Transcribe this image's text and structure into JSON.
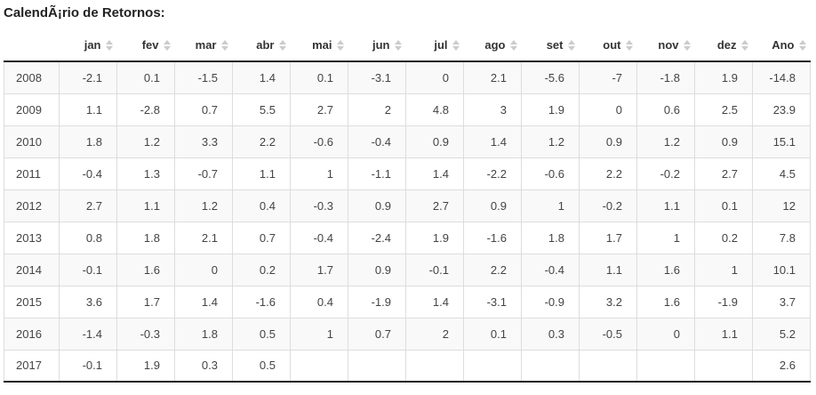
{
  "title": "CalendÃ¡rio de Retornos:",
  "table": {
    "columns": [
      {
        "label": "",
        "sortable": false
      },
      {
        "label": "jan",
        "sortable": true
      },
      {
        "label": "fev",
        "sortable": true
      },
      {
        "label": "mar",
        "sortable": true
      },
      {
        "label": "abr",
        "sortable": true
      },
      {
        "label": "mai",
        "sortable": true
      },
      {
        "label": "jun",
        "sortable": true
      },
      {
        "label": "jul",
        "sortable": true
      },
      {
        "label": "ago",
        "sortable": true
      },
      {
        "label": "set",
        "sortable": true
      },
      {
        "label": "out",
        "sortable": true
      },
      {
        "label": "nov",
        "sortable": true
      },
      {
        "label": "dez",
        "sortable": true
      },
      {
        "label": "Ano",
        "sortable": true
      }
    ],
    "rows": [
      {
        "year": "2008",
        "values": [
          "-2.1",
          "0.1",
          "-1.5",
          "1.4",
          "0.1",
          "-3.1",
          "0",
          "2.1",
          "-5.6",
          "-7",
          "-1.8",
          "1.9",
          "-14.8"
        ]
      },
      {
        "year": "2009",
        "values": [
          "1.1",
          "-2.8",
          "0.7",
          "5.5",
          "2.7",
          "2",
          "4.8",
          "3",
          "1.9",
          "0",
          "0.6",
          "2.5",
          "23.9"
        ]
      },
      {
        "year": "2010",
        "values": [
          "1.8",
          "1.2",
          "3.3",
          "2.2",
          "-0.6",
          "-0.4",
          "0.9",
          "1.4",
          "1.2",
          "0.9",
          "1.2",
          "0.9",
          "15.1"
        ]
      },
      {
        "year": "2011",
        "values": [
          "-0.4",
          "1.3",
          "-0.7",
          "1.1",
          "1",
          "-1.1",
          "1.4",
          "-2.2",
          "-0.6",
          "2.2",
          "-0.2",
          "2.7",
          "4.5"
        ]
      },
      {
        "year": "2012",
        "values": [
          "2.7",
          "1.1",
          "1.2",
          "0.4",
          "-0.3",
          "0.9",
          "2.7",
          "0.9",
          "1",
          "-0.2",
          "1.1",
          "0.1",
          "12"
        ]
      },
      {
        "year": "2013",
        "values": [
          "0.8",
          "1.8",
          "2.1",
          "0.7",
          "-0.4",
          "-2.4",
          "1.9",
          "-1.6",
          "1.8",
          "1.7",
          "1",
          "0.2",
          "7.8"
        ]
      },
      {
        "year": "2014",
        "values": [
          "-0.1",
          "1.6",
          "0",
          "0.2",
          "1.7",
          "0.9",
          "-0.1",
          "2.2",
          "-0.4",
          "1.1",
          "1.6",
          "1",
          "10.1"
        ]
      },
      {
        "year": "2015",
        "values": [
          "3.6",
          "1.7",
          "1.4",
          "-1.6",
          "0.4",
          "-1.9",
          "1.4",
          "-3.1",
          "-0.9",
          "3.2",
          "1.6",
          "-1.9",
          "3.7"
        ]
      },
      {
        "year": "2016",
        "values": [
          "-1.4",
          "-0.3",
          "1.8",
          "0.5",
          "1",
          "0.7",
          "2",
          "0.1",
          "0.3",
          "-0.5",
          "0",
          "1.1",
          "5.2"
        ]
      },
      {
        "year": "2017",
        "values": [
          "-0.1",
          "1.9",
          "0.3",
          "0.5",
          "",
          "",
          "",
          "",
          "",
          "",
          "",
          "",
          "2.6"
        ]
      }
    ]
  },
  "colors": {
    "stripe": "#f9f9f9",
    "border_light": "#dddddd",
    "border_dark": "#222222",
    "sort_icon": "#cccccc",
    "cell_text": "#444444",
    "header_text": "#333333"
  }
}
